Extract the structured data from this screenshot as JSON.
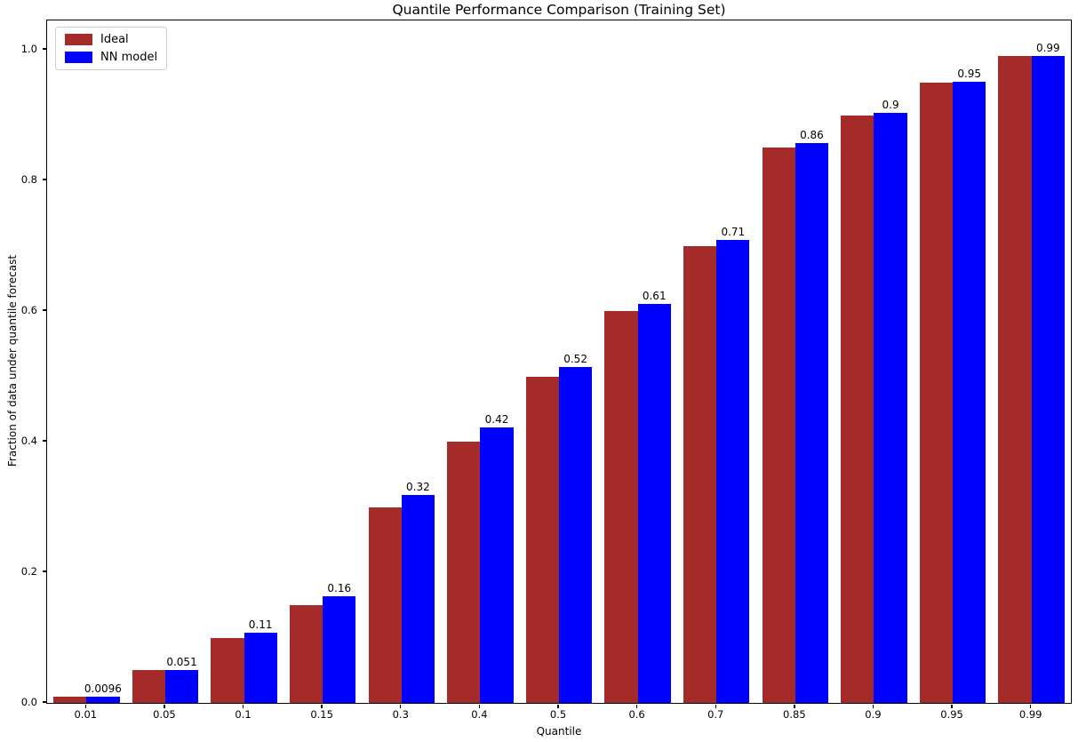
{
  "chart_data": {
    "type": "bar",
    "title": "Quantile Performance Comparison (Training Set)",
    "xlabel": "Quantile",
    "ylabel": "Fraction of data under quantile forecast",
    "categories": [
      "0.01",
      "0.05",
      "0.1",
      "0.15",
      "0.3",
      "0.4",
      "0.5",
      "0.6",
      "0.7",
      "0.85",
      "0.9",
      "0.95",
      "0.99"
    ],
    "series": [
      {
        "name": "Ideal",
        "color": "#A52A2A",
        "values": [
          0.01,
          0.05,
          0.1,
          0.15,
          0.3,
          0.4,
          0.5,
          0.6,
          0.7,
          0.85,
          0.9,
          0.95,
          0.99
        ]
      },
      {
        "name": "NN model",
        "color": "#0000FF",
        "values": [
          0.0096,
          0.051,
          0.107,
          0.163,
          0.318,
          0.422,
          0.515,
          0.611,
          0.709,
          0.857,
          0.903,
          0.951,
          0.99
        ]
      }
    ],
    "bar_labels": [
      "0.0096",
      "0.051",
      "0.11",
      "0.16",
      "0.32",
      "0.42",
      "0.52",
      "0.61",
      "0.71",
      "0.86",
      "0.9",
      "0.95",
      "0.99"
    ],
    "yticks": [
      "0.0",
      "0.2",
      "0.4",
      "0.6",
      "0.8",
      "1.0"
    ],
    "ylim": [
      0,
      1.045
    ],
    "legend_position": "upper left",
    "grid": false
  }
}
